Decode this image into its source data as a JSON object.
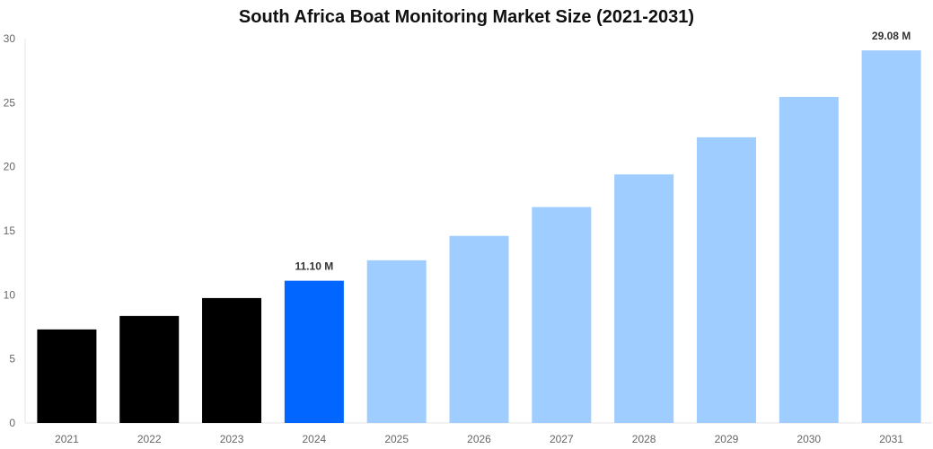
{
  "chart_data": {
    "type": "bar",
    "title": "South Africa Boat Monitoring Market Size (2021-2031)",
    "xlabel": "",
    "ylabel": "",
    "ylim": [
      0,
      30
    ],
    "yticks": [
      0,
      5,
      10,
      15,
      20,
      25,
      30
    ],
    "grid": false,
    "categories": [
      "2021",
      "2022",
      "2023",
      "2024",
      "2025",
      "2026",
      "2027",
      "2028",
      "2029",
      "2030",
      "2031"
    ],
    "values": [
      7.3,
      8.35,
      9.75,
      11.1,
      12.7,
      14.6,
      16.85,
      19.4,
      22.3,
      25.45,
      29.08
    ],
    "colors": [
      "#000000",
      "#000000",
      "#000000",
      "#0066ff",
      "#a0cdff",
      "#a0cdff",
      "#a0cdff",
      "#a0cdff",
      "#a0cdff",
      "#a0cdff",
      "#a0cdff"
    ],
    "data_labels": {
      "3": "11.10 M",
      "10": "29.08 M"
    }
  }
}
